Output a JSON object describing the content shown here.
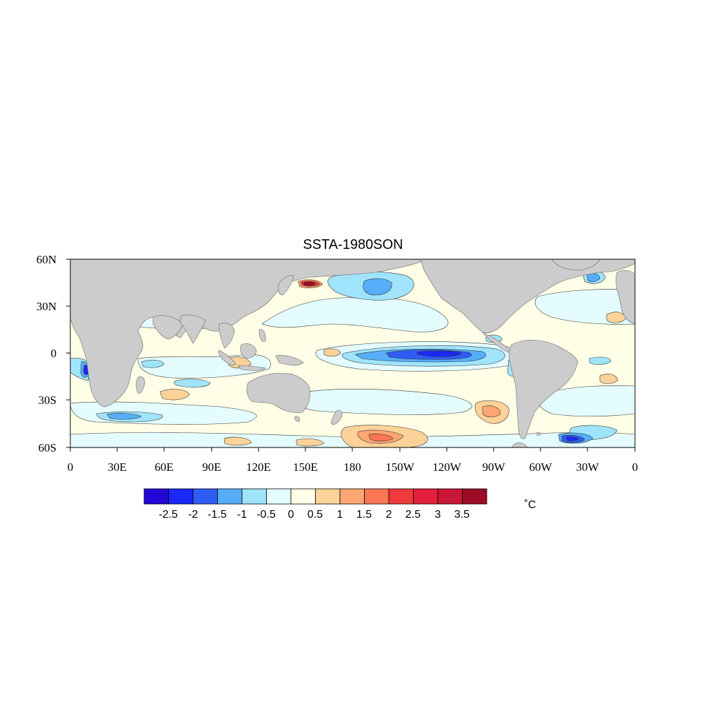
{
  "title": "SSTA-1980SON",
  "units": "˚C",
  "map": {
    "projection": "cylindrical equidistant",
    "lon_range": [
      0,
      360
    ],
    "lat_range": [
      -60,
      60
    ],
    "x_tick_labels": [
      "0",
      "30E",
      "60E",
      "90E",
      "120E",
      "150E",
      "180",
      "150W",
      "120W",
      "90W",
      "60W",
      "30W",
      "0"
    ],
    "y_tick_labels": [
      "60N",
      "30N",
      "0",
      "30S",
      "60S"
    ],
    "land_color": "#cccccc",
    "ocean_background_color": "#fffee6"
  },
  "colorbar": {
    "labels": [
      "-2.5",
      "-2",
      "-1.5",
      "-1",
      "-0.5",
      "0",
      "0.5",
      "1",
      "1.5",
      "2",
      "2.5",
      "3",
      "3.5"
    ],
    "colors": [
      "#2407d6",
      "#1a29f6",
      "#2f5cf3",
      "#57aef8",
      "#9fe4fb",
      "#e4fcfe",
      "#fffee6",
      "#fdd299",
      "#fda673",
      "#fb7654",
      "#ef3b3b",
      "#e41f3c",
      "#cb1737",
      "#9d0b26"
    ]
  },
  "anomaly_regions": [
    {
      "name": "equatorial-pacific-cold-tongue",
      "level": -2.5
    },
    {
      "name": "southwest-atlantic-cold-patch",
      "level": -2.5
    },
    {
      "name": "north-pacific-cold-pool",
      "level": -1.5
    },
    {
      "name": "kuroshio-warm-spot",
      "level": 3.5
    },
    {
      "name": "south-pacific-warm-patch",
      "level": 1.5
    },
    {
      "name": "angola-coast-cold",
      "level": -2.0
    }
  ]
}
